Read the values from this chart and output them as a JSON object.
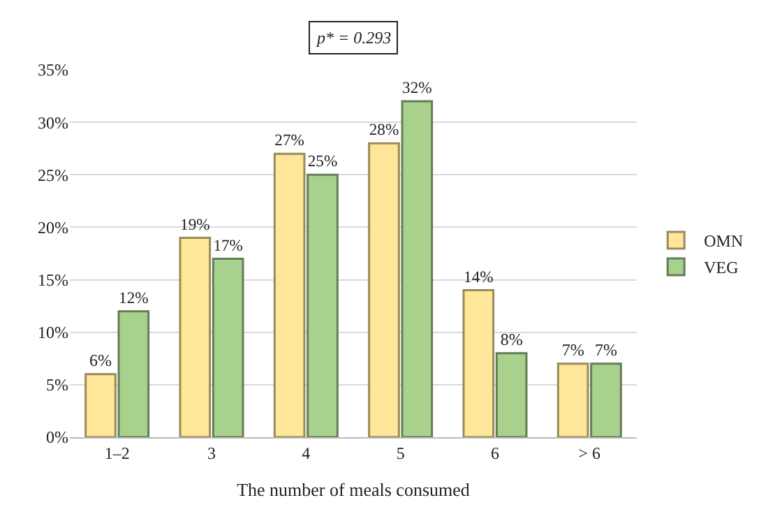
{
  "chart_data": {
    "type": "bar",
    "categories": [
      "1–2",
      "3",
      "4",
      "5",
      "6",
      "> 6"
    ],
    "series": [
      {
        "name": "OMN",
        "color": "#ffe699",
        "values": [
          6,
          19,
          27,
          28,
          14,
          7
        ],
        "value_labels": [
          "6%",
          "19%",
          "27%",
          "28%",
          "14%",
          "7%"
        ]
      },
      {
        "name": "VEG",
        "color": "#a9d18e",
        "values": [
          12,
          17,
          25,
          32,
          8,
          7
        ],
        "value_labels": [
          "12%",
          "17%",
          "25%",
          "32%",
          "8%",
          "7%"
        ]
      }
    ],
    "xlabel": "The number of meals consumed",
    "annotations": [
      "p* = 0.293"
    ],
    "ylim": [
      0,
      35
    ],
    "yticks": [
      {
        "value": 0,
        "label": "0%"
      },
      {
        "value": 5,
        "label": "5%"
      },
      {
        "value": 10,
        "label": "10%"
      },
      {
        "value": 15,
        "label": "15%"
      },
      {
        "value": 20,
        "label": "20%"
      },
      {
        "value": 25,
        "label": "25%"
      },
      {
        "value": 30,
        "label": "30%"
      },
      {
        "value": 35,
        "label": "35%"
      }
    ],
    "grid": "y",
    "legend": "right"
  }
}
